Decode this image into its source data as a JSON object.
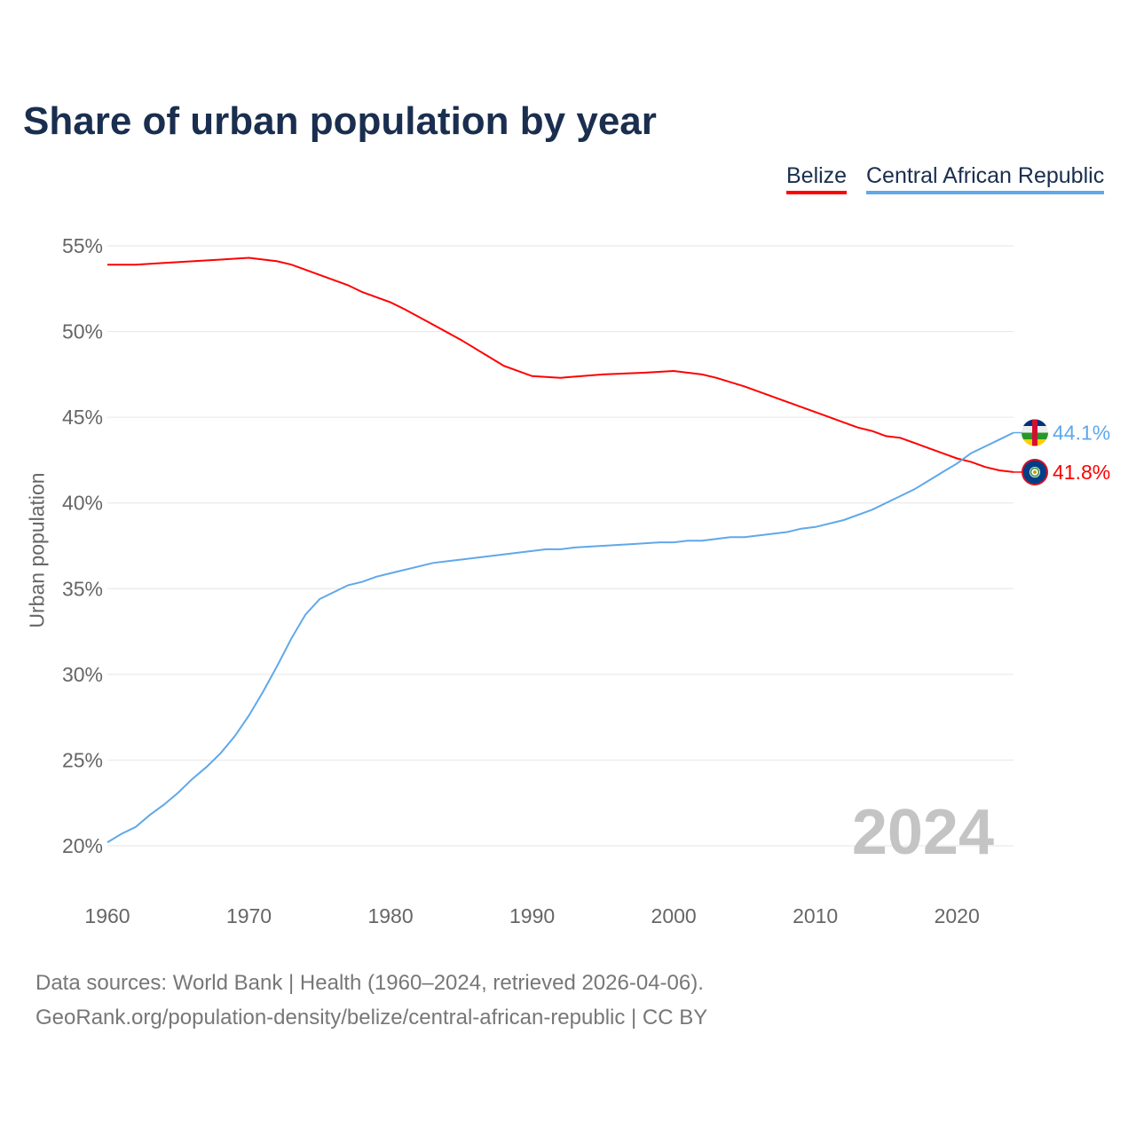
{
  "title": "Share of urban population by year",
  "legend": [
    "Belize",
    "Central African Republic"
  ],
  "footer": {
    "line1": "Data sources: World Bank | Health (1960–2024, retrieved 2026-04-06).",
    "line2": "GeoRank.org/population-density/belize/central-african-republic | CC BY"
  },
  "chart_data": {
    "type": "line",
    "title": "Share of urban population by year",
    "xlabel": "",
    "ylabel": "Urban population",
    "xlim": [
      1960,
      2024
    ],
    "ylim": [
      20,
      55
    ],
    "xticks": [
      1960,
      1970,
      1980,
      1990,
      2000,
      2010,
      2020
    ],
    "yticks": [
      20,
      25,
      30,
      35,
      40,
      45,
      50,
      55
    ],
    "ytick_labels": [
      "20%",
      "25%",
      "30%",
      "35%",
      "40%",
      "45%",
      "50%",
      "55%"
    ],
    "year_label": "2024",
    "legend_position": "top-right",
    "series": [
      {
        "name": "Belize",
        "color": "#ff0000",
        "end_label": "41.8%",
        "flag": "belize-flag",
        "x": [
          1960,
          1962,
          1964,
          1966,
          1968,
          1970,
          1972,
          1973,
          1975,
          1977,
          1978,
          1980,
          1981,
          1983,
          1985,
          1987,
          1988,
          1990,
          1992,
          1995,
          1998,
          2000,
          2002,
          2003,
          2005,
          2008,
          2010,
          2011,
          2012,
          2013,
          2014,
          2015,
          2016,
          2017,
          2018,
          2019,
          2020,
          2021,
          2022,
          2023,
          2024
        ],
        "y": [
          53.9,
          53.9,
          54.0,
          54.1,
          54.2,
          54.3,
          54.1,
          53.9,
          53.3,
          52.7,
          52.3,
          51.7,
          51.3,
          50.4,
          49.5,
          48.5,
          48.0,
          47.4,
          47.3,
          47.5,
          47.6,
          47.7,
          47.5,
          47.3,
          46.8,
          45.9,
          45.3,
          45.0,
          44.7,
          44.4,
          44.2,
          43.9,
          43.8,
          43.5,
          43.2,
          42.9,
          42.6,
          42.4,
          42.1,
          41.9,
          41.8
        ]
      },
      {
        "name": "Central African Republic",
        "color": "#5fa8ea",
        "end_label": "44.1%",
        "flag": "central-african-republic-flag",
        "x": [
          1960,
          1961,
          1962,
          1963,
          1964,
          1965,
          1966,
          1967,
          1968,
          1969,
          1970,
          1971,
          1972,
          1973,
          1974,
          1975,
          1976,
          1977,
          1978,
          1979,
          1980,
          1982,
          1983,
          1985,
          1987,
          1989,
          1991,
          1992,
          1993,
          1995,
          1997,
          1999,
          2000,
          2001,
          2002,
          2004,
          2005,
          2008,
          2009,
          2010,
          2012,
          2014,
          2016,
          2017,
          2018,
          2019,
          2020,
          2021,
          2022,
          2023,
          2024
        ],
        "y": [
          20.2,
          20.7,
          21.1,
          21.8,
          22.4,
          23.1,
          23.9,
          24.6,
          25.4,
          26.4,
          27.6,
          29.0,
          30.5,
          32.1,
          33.5,
          34.4,
          34.8,
          35.2,
          35.4,
          35.7,
          35.9,
          36.3,
          36.5,
          36.7,
          36.9,
          37.1,
          37.3,
          37.3,
          37.4,
          37.5,
          37.6,
          37.7,
          37.7,
          37.8,
          37.8,
          38.0,
          38.0,
          38.3,
          38.5,
          38.6,
          39.0,
          39.6,
          40.4,
          40.8,
          41.3,
          41.8,
          42.3,
          42.9,
          43.3,
          43.7,
          44.1
        ]
      }
    ]
  }
}
